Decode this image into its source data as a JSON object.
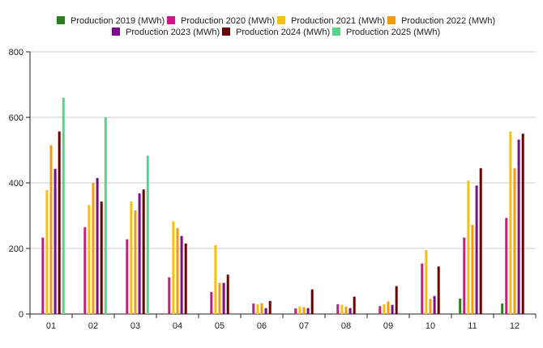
{
  "chart_data": {
    "type": "bar",
    "title": "",
    "xlabel": "",
    "ylabel": "",
    "ylim": [
      0,
      800
    ],
    "yticks": [
      0,
      200,
      400,
      600,
      800
    ],
    "grid": "horizontal",
    "legend_position": "top-center",
    "categories": [
      "01",
      "02",
      "03",
      "04",
      "05",
      "06",
      "07",
      "08",
      "09",
      "10",
      "11",
      "12"
    ],
    "series": [
      {
        "name": "Production 2019 (MWh)",
        "color": "#2e7d1e",
        "values": [
          0,
          0,
          0,
          0,
          0,
          0,
          0,
          0,
          0,
          0,
          47,
          32
        ]
      },
      {
        "name": "Production 2020 (MWh)",
        "color": "#d4148a",
        "values": [
          233,
          265,
          228,
          112,
          67,
          32,
          17,
          30,
          24,
          154,
          233,
          293
        ]
      },
      {
        "name": "Production 2021 (MWh)",
        "color": "#f4c20d",
        "values": [
          378,
          333,
          343,
          283,
          210,
          30,
          23,
          28,
          30,
          195,
          407,
          557
        ]
      },
      {
        "name": "Production 2022 (MWh)",
        "color": "#f39a0b",
        "values": [
          515,
          400,
          316,
          262,
          95,
          33,
          21,
          22,
          38,
          46,
          272,
          445
        ]
      },
      {
        "name": "Production 2023 (MWh)",
        "color": "#7b0a8c",
        "values": [
          443,
          415,
          368,
          238,
          95,
          18,
          18,
          18,
          28,
          55,
          392,
          532
        ]
      },
      {
        "name": "Production 2024 (MWh)",
        "color": "#6b0000",
        "values": [
          557,
          343,
          380,
          215,
          120,
          40,
          75,
          53,
          85,
          145,
          445,
          550
        ]
      },
      {
        "name": "Production 2025 (MWh)",
        "color": "#5ad48a",
        "values": [
          660,
          600,
          483,
          0,
          0,
          0,
          0,
          0,
          0,
          0,
          0,
          0
        ]
      }
    ]
  }
}
